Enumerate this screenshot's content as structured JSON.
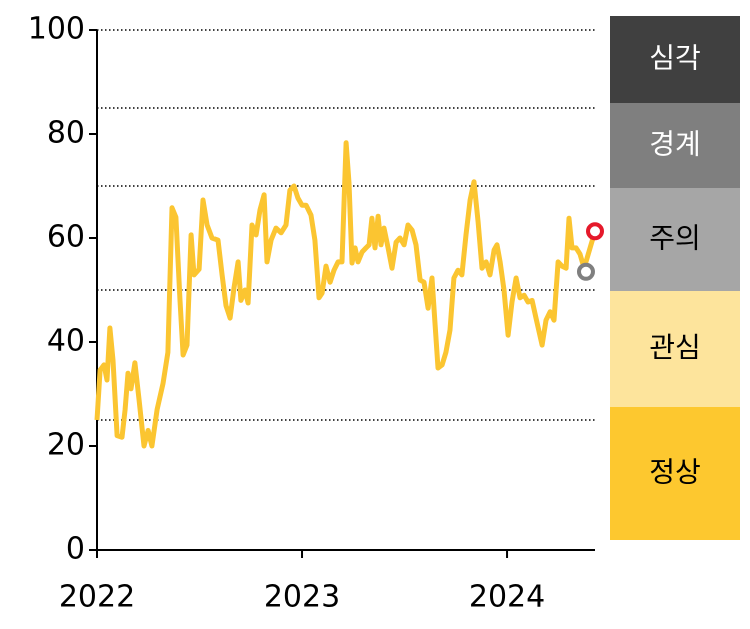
{
  "chart_data": {
    "type": "line",
    "x": [
      2022.0,
      2022.015,
      2022.034,
      2022.049,
      2022.063,
      2022.078,
      2022.098,
      2022.122,
      2022.137,
      2022.151,
      2022.166,
      2022.185,
      2022.205,
      2022.229,
      2022.249,
      2022.268,
      2022.293,
      2022.322,
      2022.346,
      2022.366,
      2022.385,
      2022.405,
      2022.42,
      2022.439,
      2022.459,
      2022.473,
      2022.498,
      2022.517,
      2022.537,
      2022.561,
      2022.59,
      2022.61,
      2022.629,
      2022.649,
      2022.668,
      2022.688,
      2022.702,
      2022.722,
      2022.737,
      2022.756,
      2022.776,
      2022.795,
      2022.815,
      2022.829,
      2022.849,
      2022.873,
      2022.898,
      2022.922,
      2022.941,
      2022.961,
      2022.98,
      2023.0,
      2023.02,
      2023.044,
      2023.063,
      2023.083,
      2023.098,
      2023.117,
      2023.137,
      2023.156,
      2023.176,
      2023.195,
      2023.215,
      2023.229,
      2023.244,
      2023.259,
      2023.273,
      2023.293,
      2023.312,
      2023.327,
      2023.341,
      2023.356,
      2023.371,
      2023.385,
      2023.4,
      2023.42,
      2023.439,
      2023.459,
      2023.478,
      2023.498,
      2023.517,
      2023.537,
      2023.556,
      2023.576,
      2023.595,
      2023.615,
      2023.634,
      2023.649,
      2023.663,
      2023.683,
      2023.702,
      2023.722,
      2023.741,
      2023.761,
      2023.78,
      2023.8,
      2023.82,
      2023.839,
      2023.859,
      2023.878,
      2023.898,
      2023.917,
      2023.937,
      2023.951,
      2023.966,
      2023.985,
      2024.005,
      2024.024,
      2024.044,
      2024.063,
      2024.083,
      2024.102,
      2024.122,
      2024.141,
      2024.171,
      2024.19,
      2024.21,
      2024.229,
      2024.249,
      2024.268,
      2024.288,
      2024.302,
      2024.317,
      2024.337,
      2024.356,
      2024.376,
      2024.429
    ],
    "values": [
      25,
      34.6,
      35.6,
      32.7,
      42.7,
      36.5,
      22,
      21.7,
      27,
      34,
      31,
      36,
      29,
      20,
      23,
      20,
      27,
      32,
      38,
      65.8,
      64,
      48,
      37.5,
      39.4,
      60.6,
      52.9,
      54,
      67.3,
      62.5,
      60,
      59.6,
      52.9,
      47,
      44.6,
      50.4,
      55.4,
      48,
      50,
      47.5,
      62.5,
      60.6,
      65.4,
      68.3,
      55.4,
      59.6,
      61.9,
      61,
      62.5,
      69.2,
      70,
      67.7,
      66.3,
      66.3,
      64.4,
      59.6,
      48.5,
      49.4,
      54.6,
      51.5,
      53.8,
      55.4,
      55.4,
      78.3,
      70.6,
      55.2,
      58.1,
      55.4,
      57.3,
      58.1,
      58.7,
      63.8,
      58.1,
      64.2,
      58.7,
      61.9,
      58.1,
      54.2,
      59.2,
      60,
      58.7,
      62.5,
      61.5,
      58.7,
      51.9,
      51.5,
      46.5,
      52.3,
      43.3,
      35,
      35.6,
      38,
      42.3,
      52.3,
      53.8,
      52.9,
      60.6,
      67.3,
      70.8,
      63.1,
      54.2,
      55.4,
      52.9,
      57.7,
      58.7,
      55.4,
      50,
      41.3,
      47.7,
      52.3,
      48.5,
      49,
      47.7,
      48,
      44.6,
      39.4,
      44.2,
      45.8,
      44.2,
      55.4,
      54.6,
      54.2,
      63.8,
      58.1,
      58.1,
      56.9,
      54.2,
      61.3
    ],
    "color": "#fbc531",
    "markers": [
      {
        "x": 2024.385,
        "y": 53.5,
        "color": "#7f7f7f"
      },
      {
        "x": 2024.429,
        "y": 61.3,
        "color": "#e5192b"
      }
    ],
    "xlim": [
      2022,
      2024.429
    ],
    "xticks": [
      2022,
      2023,
      2024
    ],
    "ylim": [
      0,
      100
    ],
    "yticks": [
      0,
      20,
      40,
      60,
      80,
      100
    ],
    "thresholds": [
      25,
      50,
      70,
      85,
      100
    ],
    "bands": [
      {
        "name": "심각",
        "color": "#404040",
        "text_color": "#ffffff"
      },
      {
        "name": "경계",
        "color": "#7f7f7f",
        "text_color": "#ffffff"
      },
      {
        "name": "주의",
        "color": "#a6a6a6",
        "text_color": "#000000"
      },
      {
        "name": "관심",
        "color": "#fde49c",
        "text_color": "#000000"
      },
      {
        "name": "정상",
        "color": "#fdc82f",
        "text_color": "#000000"
      }
    ]
  }
}
